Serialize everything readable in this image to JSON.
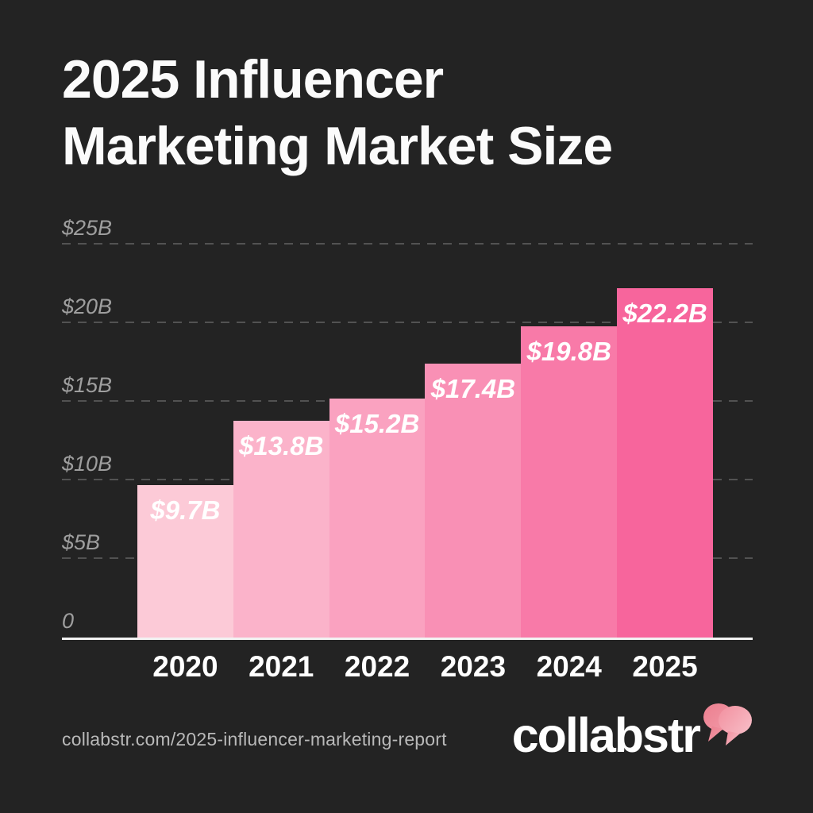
{
  "page": {
    "background": "#232323"
  },
  "header": {
    "title_lines": [
      "2025 Influencer",
      "Marketing Market Size"
    ]
  },
  "chart_data": {
    "type": "bar",
    "title": "2025 Influencer Marketing Market Size",
    "categories": [
      "2020",
      "2021",
      "2022",
      "2023",
      "2024",
      "2025"
    ],
    "values": [
      9.7,
      13.8,
      15.2,
      17.4,
      19.8,
      22.2
    ],
    "value_labels": [
      "$9.7B",
      "$13.8B",
      "$15.2B",
      "$17.4B",
      "$19.8B",
      "$22.2B"
    ],
    "bar_colors": [
      "#fccad7",
      "#fbb3ca",
      "#faa2c0",
      "#f990b5",
      "#f87aa8",
      "#f7659c"
    ],
    "y_ticks": [
      {
        "label": "$25B",
        "value": 25
      },
      {
        "label": "$20B",
        "value": 20
      },
      {
        "label": "$15B",
        "value": 15
      },
      {
        "label": "$10B",
        "value": 10
      },
      {
        "label": "$5B",
        "value": 5
      },
      {
        "label": "0",
        "value": 0
      }
    ],
    "ylim": [
      0,
      25
    ],
    "xlabel": "",
    "ylabel": "",
    "grid": "horizontal-dashed",
    "legend": "none"
  },
  "footer": {
    "source_url": "collabstr.com/2025-influencer-marketing-report",
    "brand": "collabstr"
  },
  "colors": {
    "background": "#232323",
    "title_text": "#fbfbfb",
    "grid_line": "#525252",
    "tick_label": "#9e9e9e",
    "axis_line": "#f2f2f2",
    "bar_label_text": "#ffffff",
    "year_label_text": "#ffffff",
    "url_text": "#b9b9b9",
    "logo_text": "#ffffff",
    "bubble_back": "#ed8392",
    "bubble_front_start": "#f2909f",
    "bubble_front_end": "#f7b9c3"
  }
}
